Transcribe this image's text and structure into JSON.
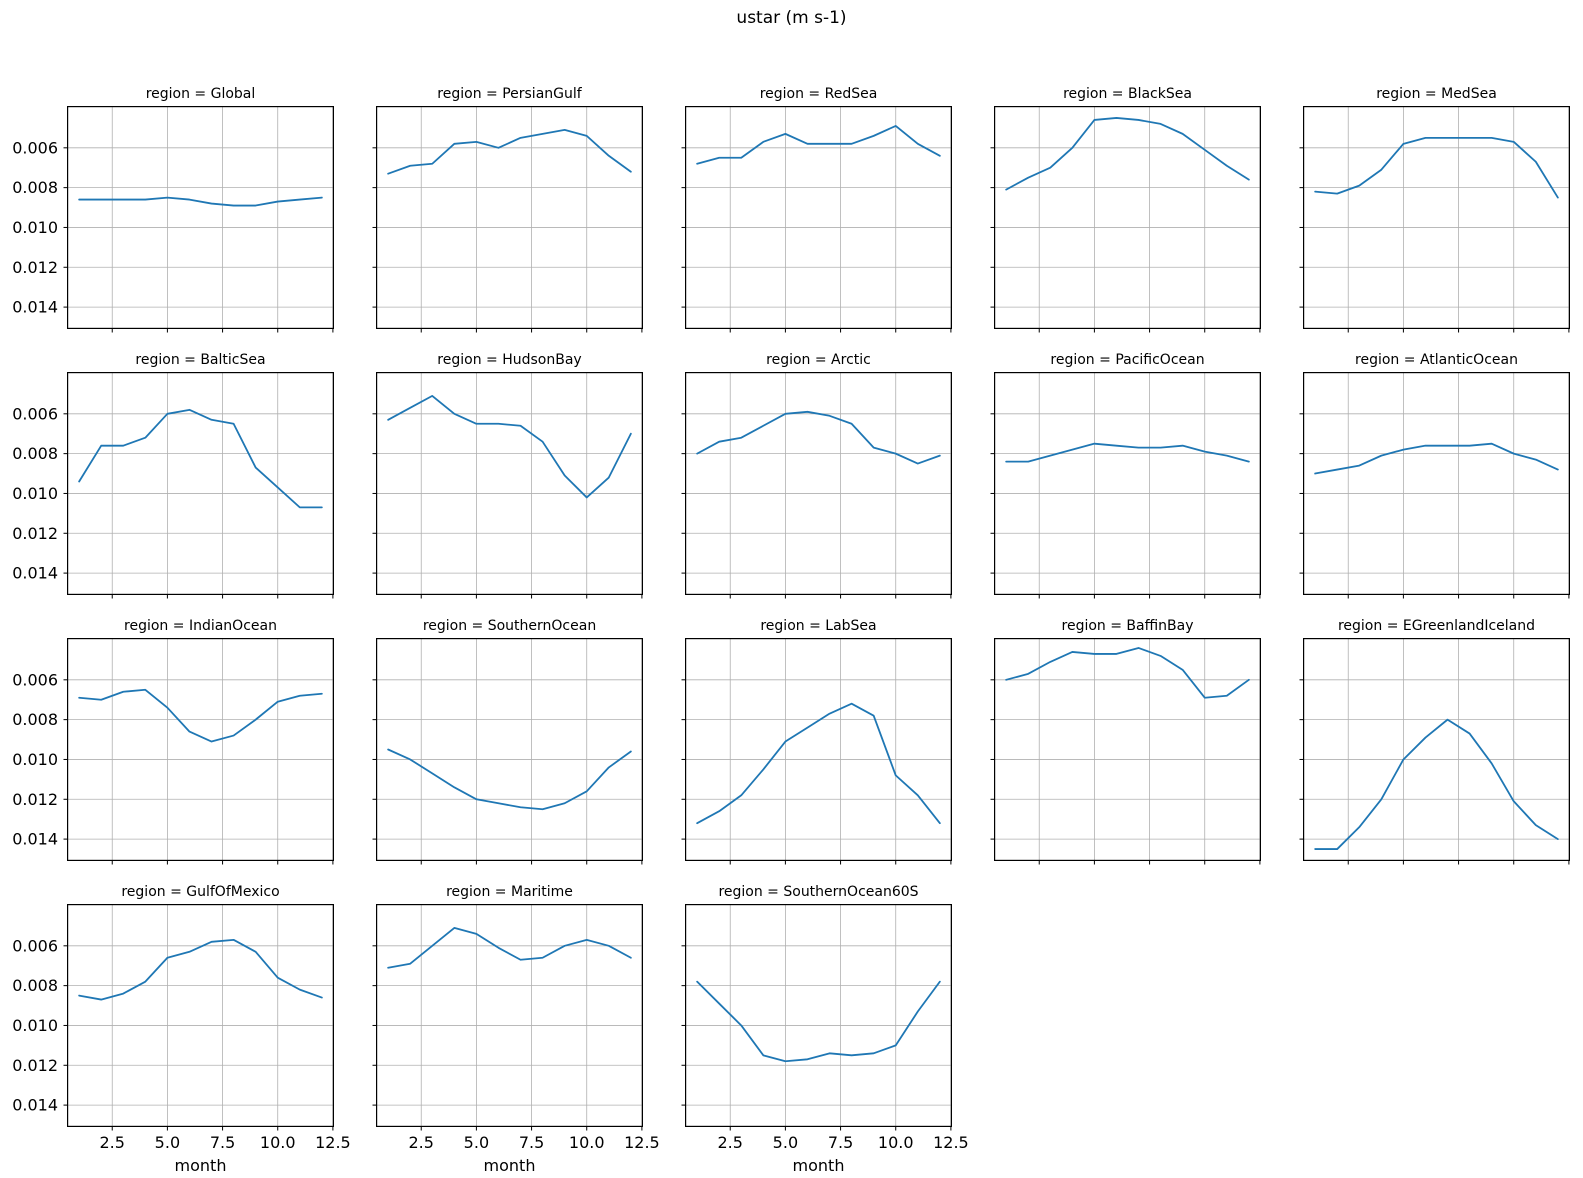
{
  "figure": {
    "title": "ustar (m s-1)"
  },
  "chart_data": {
    "type": "line",
    "title": "ustar (m s-1)",
    "xlabel": "month",
    "ylabel": "",
    "x": [
      1,
      2,
      3,
      4,
      5,
      6,
      7,
      8,
      9,
      10,
      11,
      12
    ],
    "x_ticks": [
      2.5,
      5.0,
      7.5,
      10.0,
      12.5
    ],
    "x_tick_labels": [
      "2.5",
      "5.0",
      "7.5",
      "10.0",
      "12.5"
    ],
    "y_ticks": [
      0.006,
      0.008,
      0.01,
      0.012,
      0.014
    ],
    "y_tick_labels": [
      "0.006",
      "0.008",
      "0.010",
      "0.012",
      "0.014"
    ],
    "xlim": [
      0.45,
      12.55
    ],
    "ylim": [
      0.0039,
      0.0151
    ],
    "y_axis_inverted": true,
    "grid": true,
    "legend": "none",
    "line_color": "#1f77b4",
    "grid_color": "#b0b0b0",
    "spine_color": "#000000",
    "facet_grid": {
      "rows": 4,
      "cols": 5,
      "facet_variable": "region"
    },
    "facets": [
      {
        "region": "Global",
        "title": "region = Global",
        "values": [
          0.0086,
          0.0086,
          0.0086,
          0.0086,
          0.0085,
          0.0086,
          0.0088,
          0.0089,
          0.0089,
          0.0087,
          0.0086,
          0.0085
        ]
      },
      {
        "region": "PersianGulf",
        "title": "region = PersianGulf",
        "values": [
          0.0073,
          0.0069,
          0.0068,
          0.0058,
          0.0057,
          0.006,
          0.0055,
          0.0053,
          0.0051,
          0.0054,
          0.0064,
          0.0072
        ]
      },
      {
        "region": "RedSea",
        "title": "region = RedSea",
        "values": [
          0.0068,
          0.0065,
          0.0065,
          0.0057,
          0.0053,
          0.0058,
          0.0058,
          0.0058,
          0.0054,
          0.0049,
          0.0058,
          0.0064
        ]
      },
      {
        "region": "BlackSea",
        "title": "region = BlackSea",
        "values": [
          0.0081,
          0.0075,
          0.007,
          0.006,
          0.0046,
          0.0045,
          0.0046,
          0.0048,
          0.0053,
          0.0061,
          0.0069,
          0.0076
        ]
      },
      {
        "region": "MedSea",
        "title": "region = MedSea",
        "values": [
          0.0082,
          0.0083,
          0.0079,
          0.0071,
          0.0058,
          0.0055,
          0.0055,
          0.0055,
          0.0055,
          0.0057,
          0.0067,
          0.0085
        ]
      },
      {
        "region": "BalticSea",
        "title": "region = BalticSea",
        "values": [
          0.0094,
          0.0076,
          0.0076,
          0.0072,
          0.006,
          0.0058,
          0.0063,
          0.0065,
          0.0087,
          0.0097,
          0.0107,
          0.0107
        ]
      },
      {
        "region": "HudsonBay",
        "title": "region = HudsonBay",
        "values": [
          0.0063,
          0.0057,
          0.0051,
          0.006,
          0.0065,
          0.0065,
          0.0066,
          0.0074,
          0.0091,
          0.0102,
          0.0092,
          0.007
        ]
      },
      {
        "region": "Arctic",
        "title": "region = Arctic",
        "values": [
          0.008,
          0.0074,
          0.0072,
          0.0066,
          0.006,
          0.0059,
          0.0061,
          0.0065,
          0.0077,
          0.008,
          0.0085,
          0.0081
        ]
      },
      {
        "region": "PacificOcean",
        "title": "region = PacificOcean",
        "values": [
          0.0084,
          0.0084,
          0.0081,
          0.0078,
          0.0075,
          0.0076,
          0.0077,
          0.0077,
          0.0076,
          0.0079,
          0.0081,
          0.0084
        ]
      },
      {
        "region": "AtlanticOcean",
        "title": "region = AtlanticOcean",
        "values": [
          0.009,
          0.0088,
          0.0086,
          0.0081,
          0.0078,
          0.0076,
          0.0076,
          0.0076,
          0.0075,
          0.008,
          0.0083,
          0.0088
        ]
      },
      {
        "region": "IndianOcean",
        "title": "region = IndianOcean",
        "values": [
          0.0069,
          0.007,
          0.0066,
          0.0065,
          0.0074,
          0.0086,
          0.0091,
          0.0088,
          0.008,
          0.0071,
          0.0068,
          0.0067
        ]
      },
      {
        "region": "SouthernOcean",
        "title": "region = SouthernOcean",
        "values": [
          0.0095,
          0.01,
          0.0107,
          0.0114,
          0.012,
          0.0122,
          0.0124,
          0.0125,
          0.0122,
          0.0116,
          0.0104,
          0.0096
        ]
      },
      {
        "region": "LabSea",
        "title": "region = LabSea",
        "values": [
          0.0132,
          0.0126,
          0.0118,
          0.0105,
          0.0091,
          0.0084,
          0.0077,
          0.0072,
          0.0078,
          0.0108,
          0.0118,
          0.0132
        ]
      },
      {
        "region": "BaffinBay",
        "title": "region = BaffinBay",
        "values": [
          0.006,
          0.0057,
          0.0051,
          0.0046,
          0.0047,
          0.0047,
          0.0044,
          0.0048,
          0.0055,
          0.0069,
          0.0068,
          0.006
        ]
      },
      {
        "region": "EGreenlandIceland",
        "title": "region = EGreenlandIceland",
        "values": [
          0.0145,
          0.0145,
          0.0134,
          0.012,
          0.01,
          0.0089,
          0.008,
          0.0087,
          0.0102,
          0.0121,
          0.0133,
          0.014
        ]
      },
      {
        "region": "GulfOfMexico",
        "title": "region = GulfOfMexico",
        "values": [
          0.0085,
          0.0087,
          0.0084,
          0.0078,
          0.0066,
          0.0063,
          0.0058,
          0.0057,
          0.0063,
          0.0076,
          0.0082,
          0.0086
        ]
      },
      {
        "region": "Maritime",
        "title": "region = Maritime",
        "values": [
          0.0071,
          0.0069,
          0.006,
          0.0051,
          0.0054,
          0.0061,
          0.0067,
          0.0066,
          0.006,
          0.0057,
          0.006,
          0.0066
        ]
      },
      {
        "region": "SouthernOcean60S",
        "title": "region = SouthernOcean60S",
        "values": [
          0.0078,
          0.0089,
          0.01,
          0.0115,
          0.0118,
          0.0117,
          0.0114,
          0.0115,
          0.0114,
          0.011,
          0.0093,
          0.0078
        ]
      }
    ]
  }
}
